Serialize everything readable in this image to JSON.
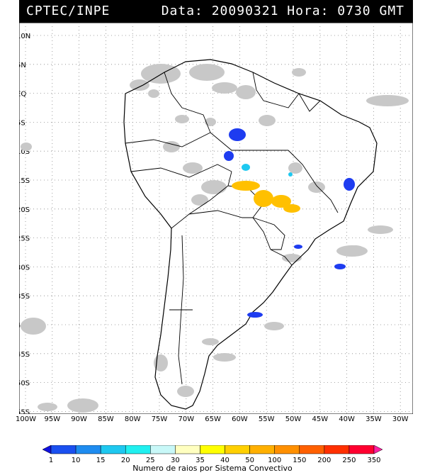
{
  "header": {
    "source": "CPTEC/INPE",
    "date_label": "Data:",
    "date_value": "20090321",
    "time_label": "Hora:",
    "time_value": "0730 GMT"
  },
  "map": {
    "lat_labels": [
      "10N",
      "5N",
      "EQ",
      "5S",
      "10S",
      "15S",
      "20S",
      "25S",
      "30S",
      "35S",
      "40S",
      "45S",
      "50S",
      "55S"
    ],
    "lon_labels": [
      "100W",
      "95W",
      "90W",
      "85W",
      "80W",
      "75W",
      "70W",
      "65W",
      "60W",
      "55W",
      "50W",
      "45W",
      "40W",
      "35W",
      "30W"
    ],
    "grid": "on (dotted)",
    "extent": {
      "lon": [
        -100,
        -28
      ],
      "lat": [
        -56,
        12
      ]
    }
  },
  "colorbar": {
    "ticks": [
      "1",
      "10",
      "15",
      "20",
      "25",
      "30",
      "35",
      "40",
      "50",
      "100",
      "150",
      "200",
      "250",
      "350"
    ],
    "colors": [
      "#1010e0",
      "#1a50f0",
      "#1e8cf0",
      "#1ec8f0",
      "#20f0f0",
      "#c8f8f8",
      "#ffffc0",
      "#ffff00",
      "#ffd000",
      "#ffb000",
      "#ff9000",
      "#ff6000",
      "#ff3000",
      "#ff0030",
      "#ff20a0"
    ],
    "caption": "Numero de raios por Sistema Convectivo"
  },
  "legend_colors": {
    "cloud": "#c8c8c8",
    "blue_cell": "#1e3cf0"
  }
}
